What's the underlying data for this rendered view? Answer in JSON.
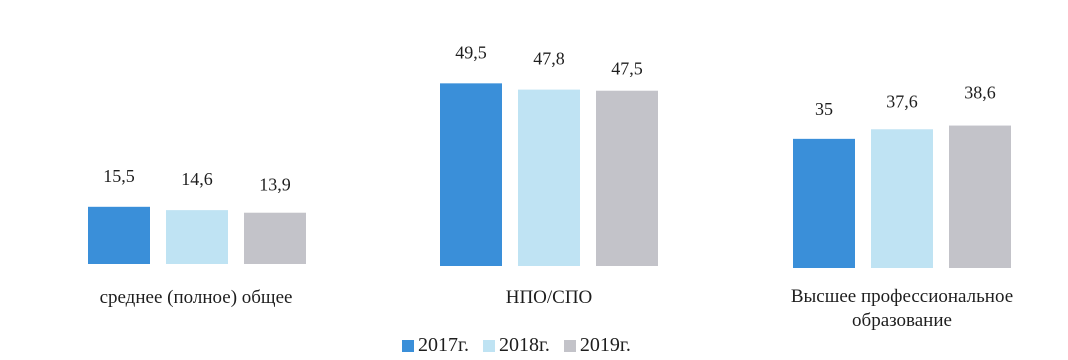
{
  "chart_data": {
    "type": "bar",
    "categories": [
      [
        "среднее (полное) общее"
      ],
      [
        "НПО/СПО"
      ],
      [
        "Высшее профессиональное",
        "образование"
      ]
    ],
    "series": [
      {
        "name": "2017г.",
        "values": [
          15.5,
          49.5,
          35
        ],
        "labels": [
          "15,5",
          "49,5",
          "35"
        ],
        "color": "#3a8fd9"
      },
      {
        "name": "2018г.",
        "values": [
          14.6,
          47.8,
          37.6
        ],
        "labels": [
          "14,6",
          "47,8",
          "37,6"
        ],
        "color": "#bfe3f3"
      },
      {
        "name": "2019г.",
        "values": [
          13.9,
          47.5,
          38.6
        ],
        "labels": [
          "13,9",
          "47,5",
          "38,6"
        ],
        "color": "#c3c3c9"
      }
    ],
    "title": "",
    "xlabel": "",
    "ylabel": "",
    "legend_position": "bottom",
    "grid": false
  }
}
